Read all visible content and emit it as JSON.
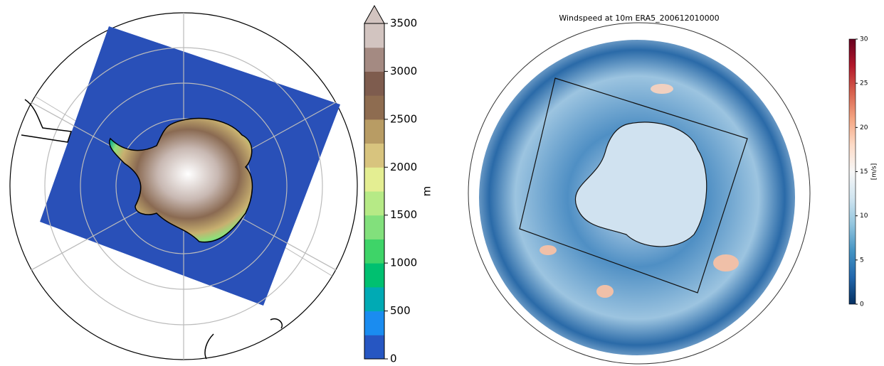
{
  "maps": [
    {
      "colorbar": {
        "label": "m",
        "lim": [
          0,
          3500
        ],
        "ticks": [
          0,
          500,
          1000,
          1500,
          2000,
          2500,
          3000,
          3500
        ],
        "extend": "max",
        "colors": [
          "#2656c2",
          "#1a8cf0",
          "#00aab4",
          "#00c070",
          "#3ed468",
          "#82e07c",
          "#b6ea86",
          "#e4ee92",
          "#d8c47e",
          "#b89c64",
          "#8e6c50",
          "#7e5c4e",
          "#a48a82",
          "#d2c4c0"
        ]
      }
    },
    {
      "title": "Windspeed at 10m ERA5_200612010000",
      "colorbar": {
        "label": "[m/s]",
        "lim": [
          0,
          30
        ],
        "ticks": [
          0,
          5,
          10,
          15,
          20,
          25,
          30
        ],
        "colors": [
          "#053061",
          "#2166ac",
          "#4393c3",
          "#92c5de",
          "#d1e5f0",
          "#f7f7f7",
          "#fddbc7",
          "#f4a582",
          "#d6604d",
          "#b2182b",
          "#67001f"
        ]
      }
    }
  ]
}
